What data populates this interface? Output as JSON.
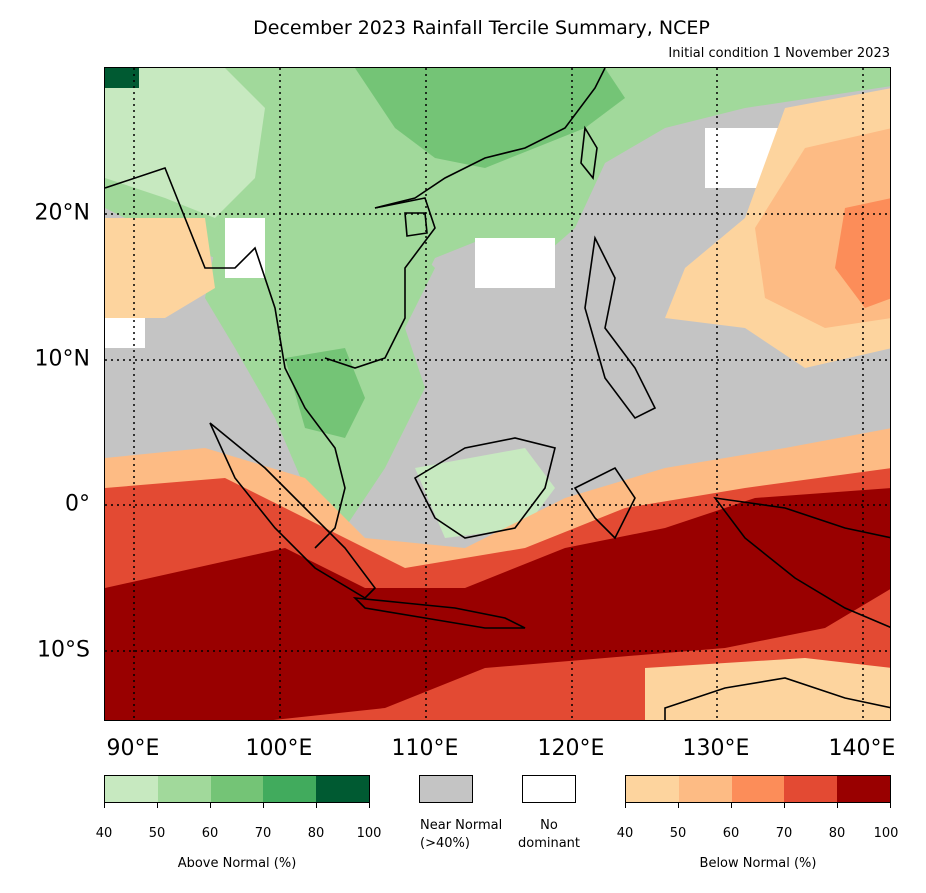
{
  "title": "December 2023 Rainfall Tercile Summary, NCEP",
  "subtitle": "Initial condition 1 November 2023",
  "map": {
    "lat_labels": [
      "20°N",
      "10°N",
      "0°",
      "10°S"
    ],
    "lon_labels": [
      "90°E",
      "100°E",
      "110°E",
      "120°E",
      "130°E",
      "140°E"
    ],
    "lat_range": [
      -15,
      30
    ],
    "lon_range": [
      88,
      142
    ],
    "gridlines": "dotted"
  },
  "legend": {
    "above_normal": {
      "label": "Above Normal (%)",
      "ticks": [
        "40",
        "50",
        "60",
        "70",
        "80",
        "100"
      ],
      "colors": [
        "#c7e9c0",
        "#a1d99b",
        "#74c476",
        "#41ab5d",
        "#005a32"
      ]
    },
    "near_normal": {
      "label": "Near Normal (>40%)",
      "color": "#c4c4c4"
    },
    "no_dominant": {
      "label": "No dominant",
      "color": "#ffffff"
    },
    "below_normal": {
      "label": "Below Normal (%)",
      "ticks": [
        "40",
        "50",
        "60",
        "70",
        "80",
        "100"
      ],
      "colors": [
        "#fdd49e",
        "#fdbb84",
        "#fc8d59",
        "#e34a33",
        "#990000"
      ]
    }
  }
}
